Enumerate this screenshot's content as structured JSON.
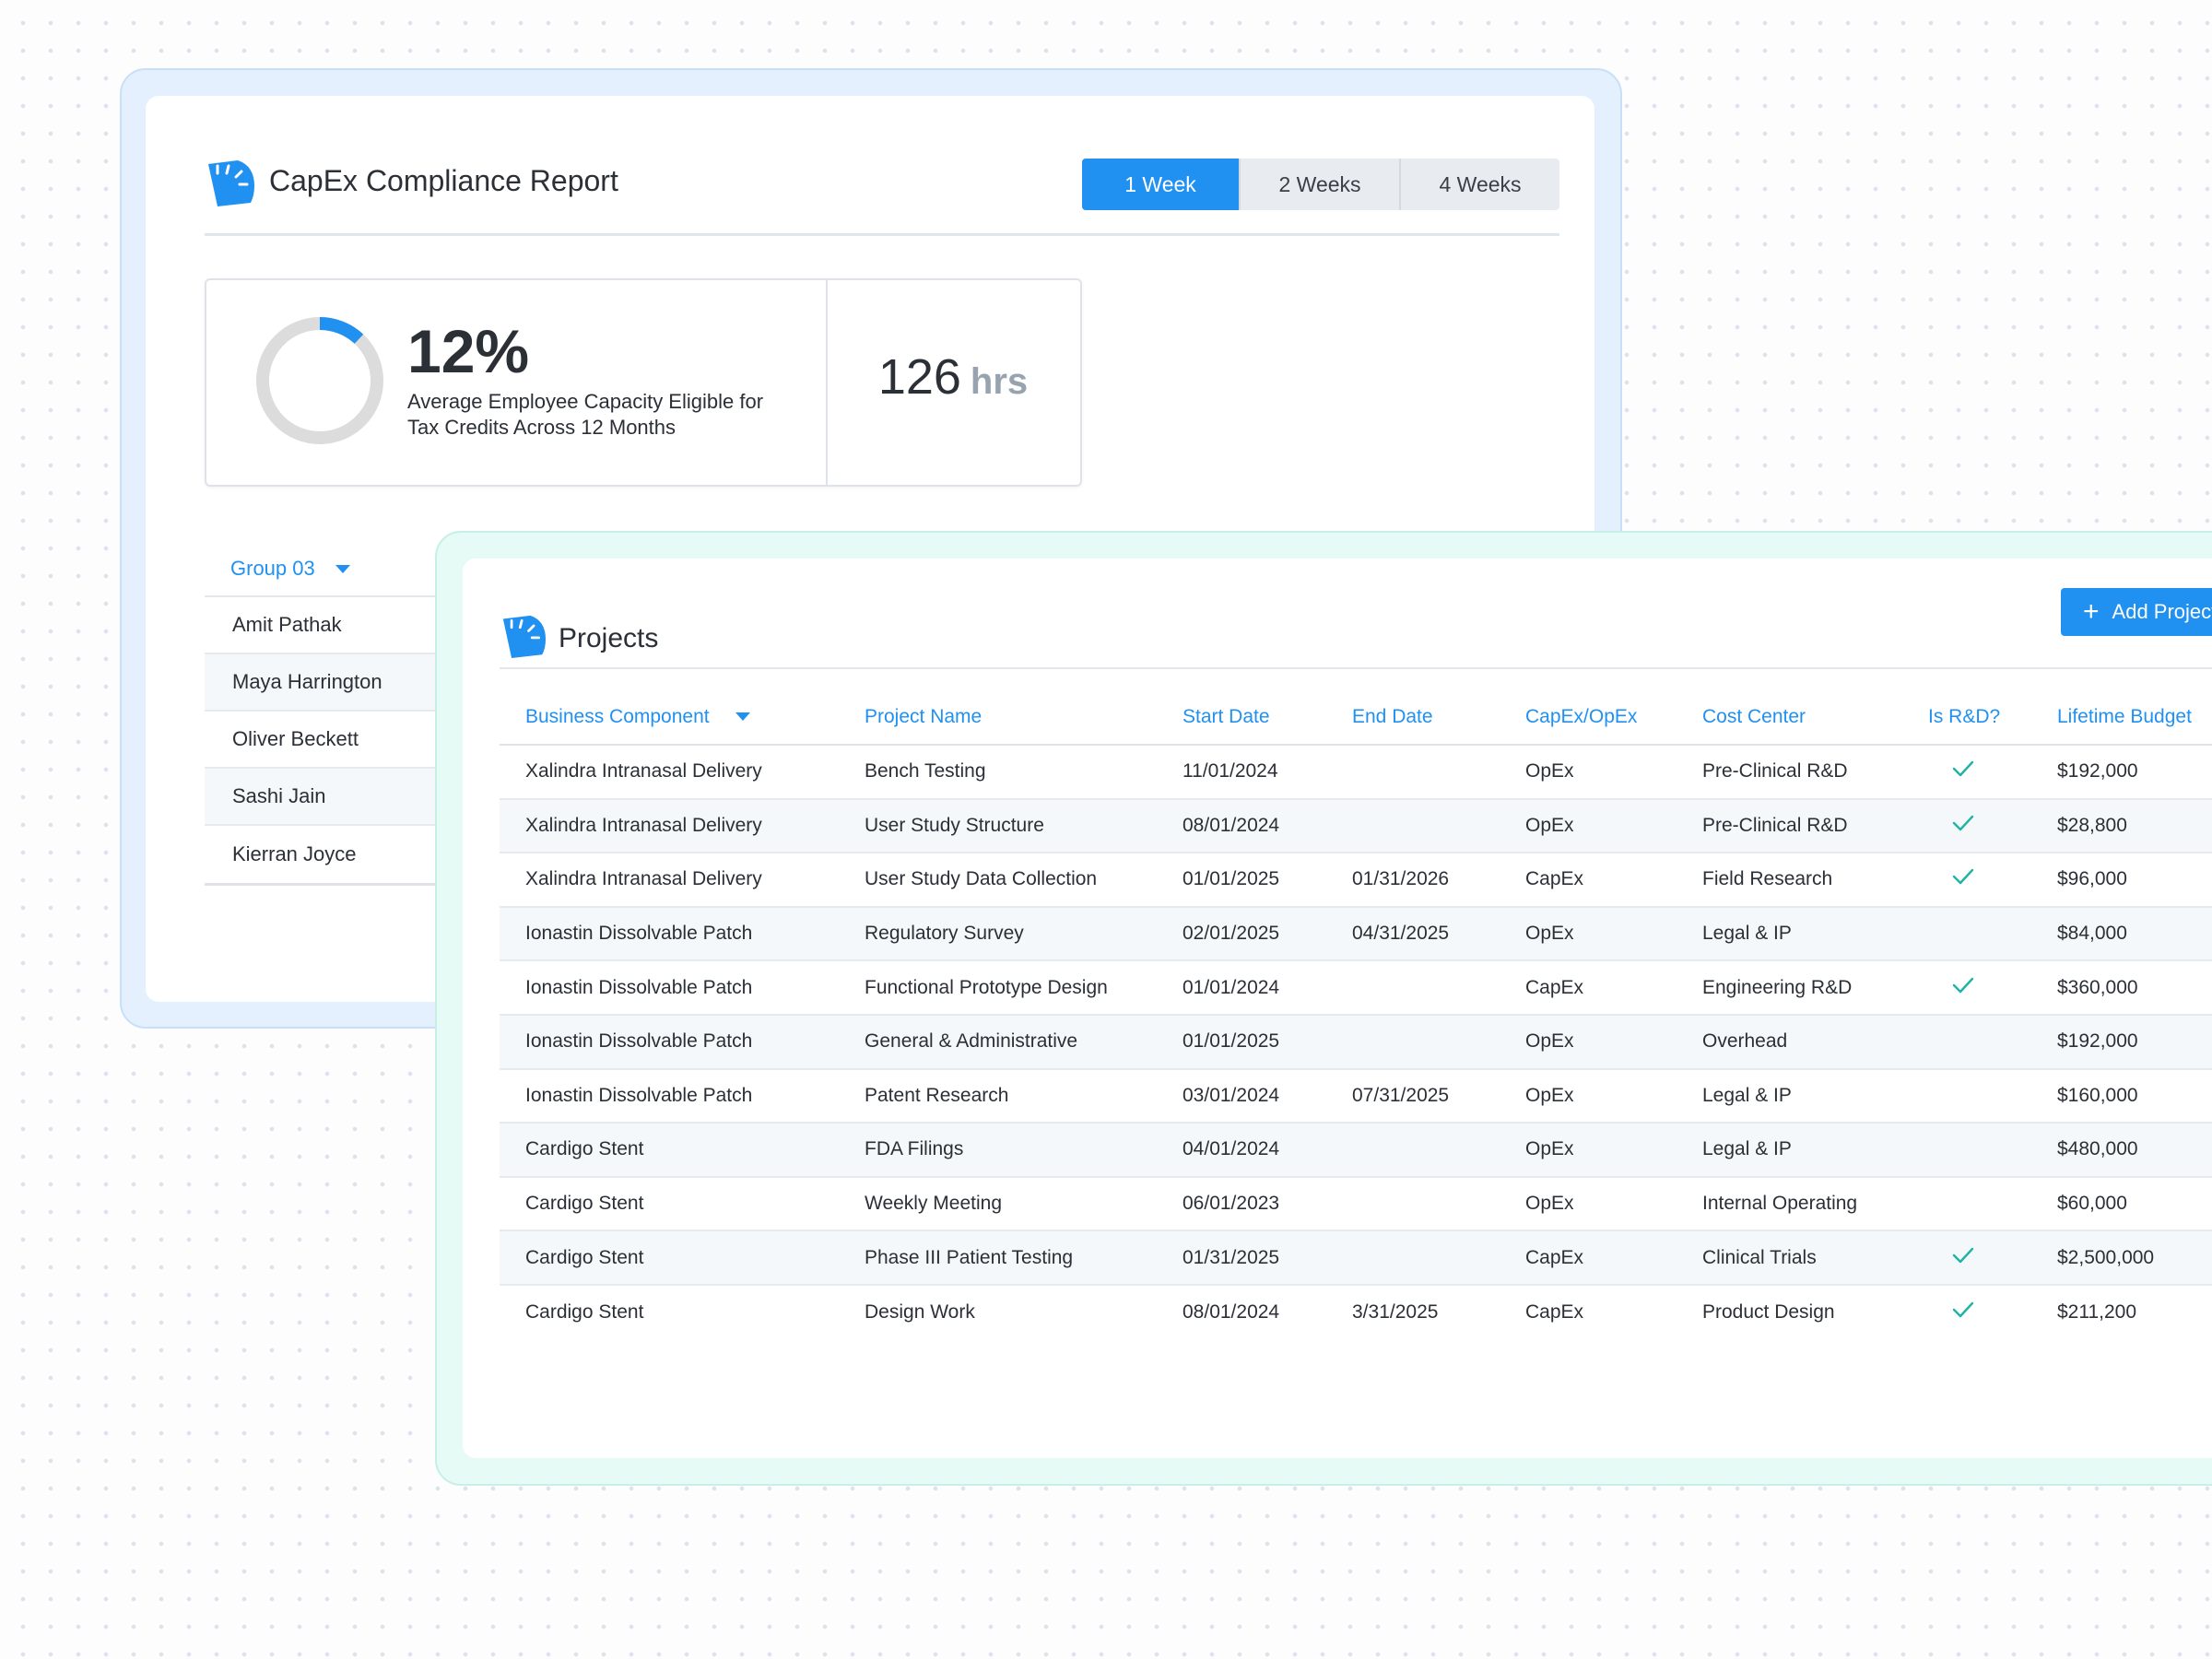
{
  "capex": {
    "title": "CapEx Compliance Report",
    "toggle": [
      "1 Week",
      "2 Weeks",
      "4 Weeks"
    ],
    "active_toggle": "1 Week",
    "stat": {
      "percent_value": 12,
      "percent_label": "12%",
      "description": "Average Employee Capacity Eligible for Tax Credits Across 12 Months",
      "hours_value": "126",
      "hours_unit": "hrs"
    },
    "group": {
      "selected": "Group 03",
      "members": [
        "Amit Pathak",
        "Maya Harrington",
        "Oliver Beckett",
        "Sashi Jain",
        "Kierran Joyce"
      ]
    }
  },
  "projects": {
    "title": "Projects",
    "add_button": "Add Project",
    "columns": [
      "Business Component",
      "Project Name",
      "Start Date",
      "End Date",
      "CapEx/OpEx",
      "Cost Center",
      "Is R&D?",
      "Lifetime Budget"
    ],
    "rows": [
      {
        "component": "Xalindra Intranasal Delivery",
        "project": "Bench Testing",
        "start": "11/01/2024",
        "end": "",
        "type": "OpEx",
        "cost_center": "Pre-Clinical R&D",
        "rnd": true,
        "budget": "$192,000"
      },
      {
        "component": "Xalindra Intranasal Delivery",
        "project": "User Study Structure",
        "start": "08/01/2024",
        "end": "",
        "type": "OpEx",
        "cost_center": "Pre-Clinical R&D",
        "rnd": true,
        "budget": "$28,800"
      },
      {
        "component": "Xalindra Intranasal Delivery",
        "project": "User Study Data Collection",
        "start": "01/01/2025",
        "end": "01/31/2026",
        "type": "CapEx",
        "cost_center": "Field Research",
        "rnd": true,
        "budget": "$96,000"
      },
      {
        "component": "Ionastin Dissolvable Patch",
        "project": "Regulatory Survey",
        "start": "02/01/2025",
        "end": "04/31/2025",
        "type": "OpEx",
        "cost_center": "Legal & IP",
        "rnd": false,
        "budget": "$84,000"
      },
      {
        "component": "Ionastin Dissolvable Patch",
        "project": "Functional Prototype Design",
        "start": "01/01/2024",
        "end": "",
        "type": "CapEx",
        "cost_center": "Engineering R&D",
        "rnd": true,
        "budget": "$360,000"
      },
      {
        "component": "Ionastin Dissolvable Patch",
        "project": "General & Administrative",
        "start": "01/01/2025",
        "end": "",
        "type": "OpEx",
        "cost_center": "Overhead",
        "rnd": false,
        "budget": "$192,000"
      },
      {
        "component": "Ionastin Dissolvable Patch",
        "project": "Patent Research",
        "start": "03/01/2024",
        "end": "07/31/2025",
        "type": "OpEx",
        "cost_center": "Legal & IP",
        "rnd": false,
        "budget": "$160,000"
      },
      {
        "component": "Cardigo Stent",
        "project": "FDA Filings",
        "start": "04/01/2024",
        "end": "",
        "type": "OpEx",
        "cost_center": "Legal & IP",
        "rnd": false,
        "budget": "$480,000"
      },
      {
        "component": "Cardigo Stent",
        "project": "Weekly Meeting",
        "start": "06/01/2023",
        "end": "",
        "type": "OpEx",
        "cost_center": "Internal Operating",
        "rnd": false,
        "budget": "$60,000"
      },
      {
        "component": "Cardigo Stent",
        "project": "Phase III Patient Testing",
        "start": "01/31/2025",
        "end": "",
        "type": "CapEx",
        "cost_center": "Clinical Trials",
        "rnd": true,
        "budget": "$2,500,000"
      },
      {
        "component": "Cardigo Stent",
        "project": "Design Work",
        "start": "08/01/2024",
        "end": "3/31/2025",
        "type": "CapEx",
        "cost_center": "Product Design",
        "rnd": true,
        "budget": "$211,200"
      }
    ]
  },
  "colors": {
    "accent": "#2191f1",
    "check": "#1fb3a4",
    "donut_track": "#dcdcdc"
  },
  "icons": {
    "logo": "gauge-logo-icon",
    "check": "check-icon",
    "caret": "caret-down-icon",
    "plus": "plus-icon"
  }
}
